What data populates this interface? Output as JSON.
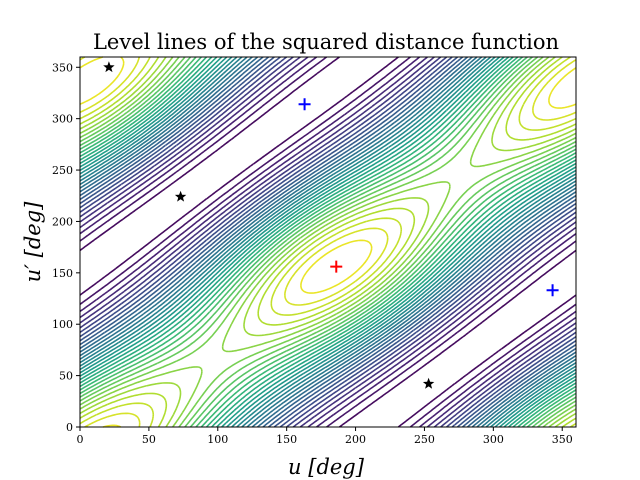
{
  "chart_data": {
    "type": "contour",
    "title": "Level lines of the squared distance function",
    "xlabel": "u [deg]",
    "ylabel": "u′ [deg]",
    "xlim": [
      0,
      360
    ],
    "ylim": [
      0,
      360
    ],
    "xticks": [
      "0",
      "50",
      "100",
      "150",
      "200",
      "250",
      "300",
      "350"
    ],
    "yticks": [
      "0",
      "50",
      "100",
      "150",
      "200",
      "250",
      "300",
      "350"
    ],
    "colormap": "viridis",
    "grid": false,
    "markers": [
      {
        "kind": "star",
        "color": "#000000",
        "u": 21,
        "u_prime": 350
      },
      {
        "kind": "star",
        "color": "#000000",
        "u": 73,
        "u_prime": 224
      },
      {
        "kind": "star",
        "color": "#000000",
        "u": 253,
        "u_prime": 42
      },
      {
        "kind": "plus",
        "color": "#0000ff",
        "u": 163,
        "u_prime": 314
      },
      {
        "kind": "plus",
        "color": "#0000ff",
        "u": 343,
        "u_prime": 133
      },
      {
        "kind": "plus",
        "color": "#ff0000",
        "u": 186,
        "u_prime": 156
      }
    ]
  }
}
